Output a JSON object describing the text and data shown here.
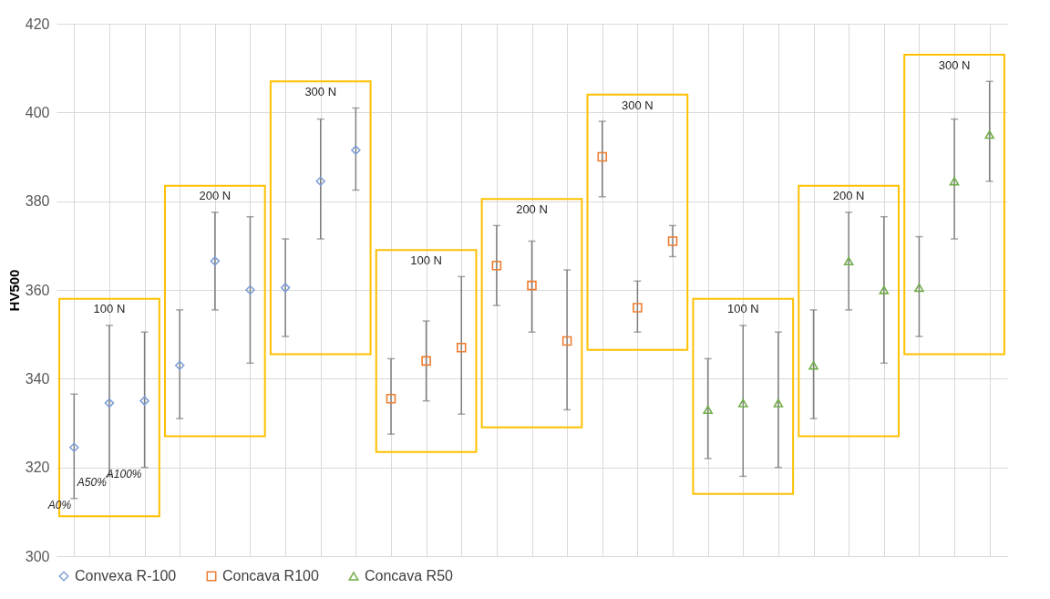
{
  "chart_data": {
    "type": "scatter",
    "ylabel": "HV500",
    "categories": [
      null,
      null,
      null,
      null,
      null,
      null,
      null,
      null,
      null,
      null,
      null,
      null,
      null,
      null,
      null,
      null,
      null,
      null,
      null,
      null,
      null,
      null,
      null,
      null,
      null,
      null,
      null
    ],
    "series": [
      {
        "name": "Convexa R-100",
        "color": "#7f9fd6",
        "marker": "diamond",
        "values": [
          324.5,
          334.5,
          335,
          343,
          366.5,
          360,
          360.5,
          384.5,
          391.5,
          null,
          null,
          null,
          null,
          null,
          null,
          null,
          null,
          null,
          null,
          null,
          null,
          null,
          null,
          null,
          null,
          null,
          null
        ],
        "errors": [
          [
            313,
            336.5
          ],
          [
            318,
            352
          ],
          [
            320,
            350.5
          ],
          [
            331,
            355.5
          ],
          [
            355.5,
            377.5
          ],
          [
            343.5,
            376.5
          ],
          [
            349.5,
            371.5
          ],
          [
            371.5,
            398.5
          ],
          [
            382.5,
            401
          ],
          null,
          null,
          null,
          null,
          null,
          null,
          null,
          null,
          null,
          null,
          null,
          null,
          null,
          null,
          null,
          null,
          null,
          null
        ]
      },
      {
        "name": "Concava R100",
        "color": "#ed7d31",
        "marker": "square",
        "values": [
          null,
          null,
          null,
          null,
          null,
          null,
          null,
          null,
          null,
          335.5,
          344,
          347,
          365.5,
          361,
          348.5,
          390,
          356,
          371,
          null,
          null,
          null,
          null,
          null,
          null,
          null,
          null,
          null
        ],
        "errors": [
          null,
          null,
          null,
          null,
          null,
          null,
          null,
          null,
          null,
          [
            327.5,
            344.5
          ],
          [
            335,
            353
          ],
          [
            332,
            363
          ],
          [
            356.5,
            374.5
          ],
          [
            350.5,
            371
          ],
          [
            333,
            364.5
          ],
          [
            381,
            398
          ],
          [
            350.5,
            362
          ],
          [
            367.5,
            374.5
          ],
          null,
          null,
          null,
          null,
          null,
          null,
          null,
          null,
          null
        ]
      },
      {
        "name": "Concava R50",
        "color": "#70ad47",
        "marker": "triangle",
        "values": [
          null,
          null,
          null,
          null,
          null,
          null,
          null,
          null,
          null,
          null,
          null,
          null,
          null,
          null,
          null,
          null,
          null,
          null,
          333,
          334.5,
          334.5,
          343,
          366.5,
          360,
          360.5,
          384.5,
          395
        ],
        "errors": [
          null,
          null,
          null,
          null,
          null,
          null,
          null,
          null,
          null,
          null,
          null,
          null,
          null,
          null,
          null,
          null,
          null,
          null,
          [
            322,
            344.5
          ],
          [
            318,
            352
          ],
          [
            320,
            350.5
          ],
          [
            331,
            355.5
          ],
          [
            355.5,
            377.5
          ],
          [
            343.5,
            376.5
          ],
          [
            349.5,
            372
          ],
          [
            371.5,
            398.5
          ],
          [
            384.5,
            407
          ]
        ]
      }
    ],
    "ylim": [
      300,
      420
    ],
    "yticks": [
      300,
      320,
      340,
      360,
      380,
      400,
      420
    ],
    "grid": true,
    "legend": "bottom",
    "annotations": [
      "100 N",
      "200 N",
      "300 N",
      "100 N",
      "200 N",
      "300 N",
      "100 N",
      "200 N",
      "300 N",
      "A0%",
      "A50%",
      "A100%"
    ]
  }
}
